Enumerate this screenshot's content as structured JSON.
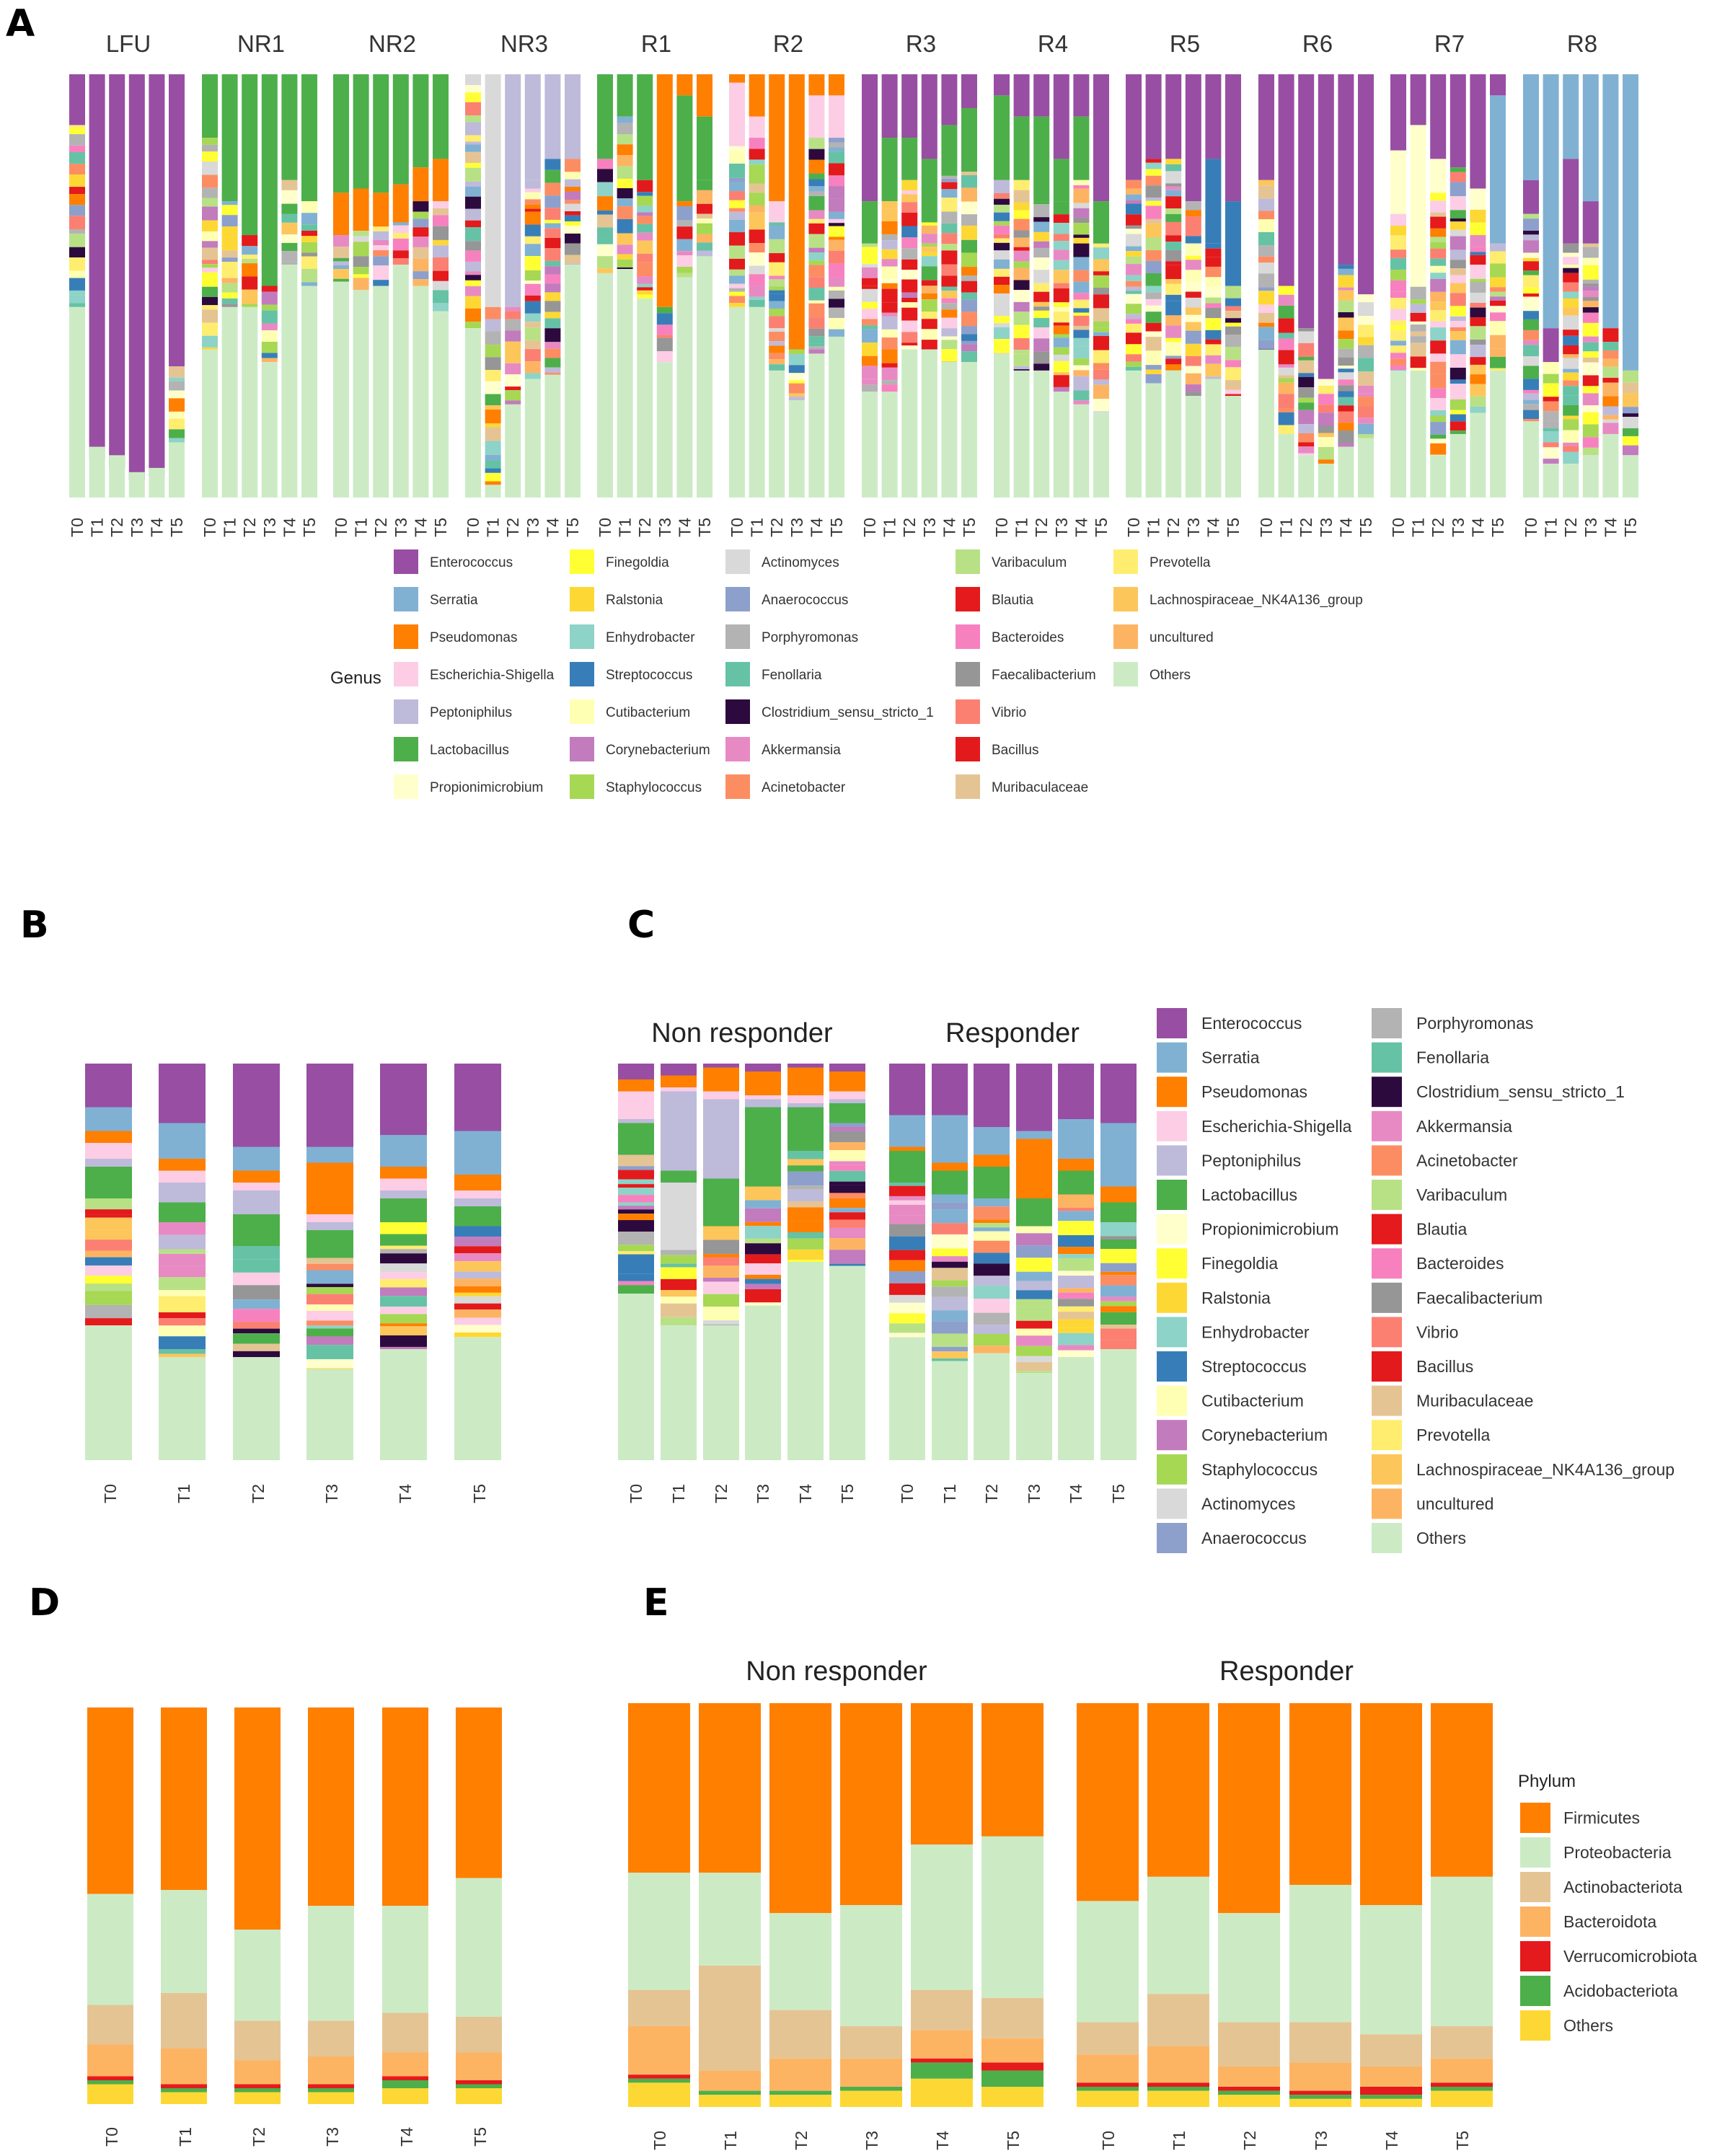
{
  "panels": {
    "a": "A",
    "b": "B",
    "c": "C",
    "d": "D",
    "e": "E"
  },
  "timepoints": [
    "T0",
    "T1",
    "T2",
    "T3",
    "T4",
    "T5"
  ],
  "groups": [
    "LFU",
    "NR1",
    "NR2",
    "NR3",
    "R1",
    "R2",
    "R3",
    "R4",
    "R5",
    "R6",
    "R7",
    "R8"
  ],
  "facets": {
    "non_responder": "Non responder",
    "responder": "Responder"
  },
  "genus_legend": {
    "title": "Genus",
    "items": [
      {
        "name": "Enterococcus",
        "color": "#984ea3"
      },
      {
        "name": "Serratia",
        "color": "#80b1d3"
      },
      {
        "name": "Pseudomonas",
        "color": "#ff7f00"
      },
      {
        "name": "Escherichia-Shigella",
        "color": "#fccde5"
      },
      {
        "name": "Peptoniphilus",
        "color": "#bebada"
      },
      {
        "name": "Lactobacillus",
        "color": "#4daf4a"
      },
      {
        "name": "Propionimicrobium",
        "color": "#ffffcc"
      },
      {
        "name": "Finegoldia",
        "color": "#ffff33"
      },
      {
        "name": "Ralstonia",
        "color": "#fdd835"
      },
      {
        "name": "Enhydrobacter",
        "color": "#8dd3c7"
      },
      {
        "name": "Streptococcus",
        "color": "#377eb8"
      },
      {
        "name": "Cutibacterium",
        "color": "#ffffb3"
      },
      {
        "name": "Corynebacterium",
        "color": "#c27bbd"
      },
      {
        "name": "Staphylococcus",
        "color": "#a6d854"
      },
      {
        "name": "Actinomyces",
        "color": "#d9d9d9"
      },
      {
        "name": "Anaerococcus",
        "color": "#8da0cb"
      },
      {
        "name": "Porphyromonas",
        "color": "#b3b3b3"
      },
      {
        "name": "Fenollaria",
        "color": "#66c2a5"
      },
      {
        "name": "Clostridium_sensu_stricto_1",
        "color": "#2d0a3e"
      },
      {
        "name": "Akkermansia",
        "color": "#e78ac3"
      },
      {
        "name": "Acinetobacter",
        "color": "#fc8d62"
      },
      {
        "name": "Varibaculum",
        "color": "#b8e186"
      },
      {
        "name": "Blautia",
        "color": "#e41a1c"
      },
      {
        "name": "Bacteroides",
        "color": "#f781bf"
      },
      {
        "name": "Faecalibacterium",
        "color": "#969696"
      },
      {
        "name": "Vibrio",
        "color": "#fb8072"
      },
      {
        "name": "Bacillus",
        "color": "#e31a1c"
      },
      {
        "name": "Muribaculaceae",
        "color": "#e5c494"
      },
      {
        "name": "Prevotella",
        "color": "#ffed6f"
      },
      {
        "name": "Lachnospiraceae_NK4A136_group",
        "color": "#fdc65a"
      },
      {
        "name": "uncultured",
        "color": "#fdb462"
      },
      {
        "name": "Others",
        "color": "#ccebc5"
      }
    ]
  },
  "phylum_legend": {
    "title": "Phylum",
    "items": [
      {
        "name": "Firmicutes",
        "color": "#ff7f00"
      },
      {
        "name": "Proteobacteria",
        "color": "#ccebc5"
      },
      {
        "name": "Actinobacteriota",
        "color": "#e5c494"
      },
      {
        "name": "Bacteroidota",
        "color": "#fdb462"
      },
      {
        "name": "Verrucomicrobiota",
        "color": "#e41a1c"
      },
      {
        "name": "Acidobacteriota",
        "color": "#4daf4a"
      },
      {
        "name": "Others",
        "color": "#fdd835"
      }
    ]
  },
  "chart_data": [
    {
      "panel": "A",
      "type": "bar",
      "stacked": true,
      "normalized": true,
      "title": "",
      "xlabel": "",
      "ylabel": "",
      "ylim": [
        0,
        1
      ],
      "note": "Relative abundance per patient group and timepoint (genus level); main segments approximated",
      "bars": [
        {
          "group": "LFU",
          "series": {
            "Enterococcus": [
              0.12,
              0.91,
              0.93,
              0.96,
              0.95,
              0.69
            ],
            "Others": [
              0.45,
              0.12,
              0.1,
              0.06,
              0.07,
              0.13
            ]
          }
        },
        {
          "group": "NR1",
          "series": {
            "Lactobacillus": [
              0.15,
              0.3,
              0.38,
              0.5,
              0.25,
              0.3
            ],
            "Others": [
              0.35,
              0.45,
              0.45,
              0.32,
              0.55,
              0.5
            ]
          }
        },
        {
          "group": "NR2",
          "series": {
            "Lactobacillus": [
              0.28,
              0.27,
              0.28,
              0.26,
              0.22,
              0.2
            ],
            "Pseudomonas": [
              0.1,
              0.1,
              0.08,
              0.09,
              0.08,
              0.1
            ],
            "Others": [
              0.51,
              0.49,
              0.5,
              0.55,
              0.5,
              0.44
            ]
          }
        },
        {
          "group": "NR3",
          "series": {
            "Peptoniphilus": [
              0.0,
              0.0,
              0.55,
              0.25,
              0.2,
              0.2
            ],
            "Actinomyces": [
              0.0,
              0.55,
              0.0,
              0.0,
              0.0,
              0.0
            ],
            "Others": [
              0.4,
              0.03,
              0.22,
              0.28,
              0.29,
              0.55
            ]
          }
        },
        {
          "group": "R1",
          "series": {
            "Pseudomonas": [
              0.0,
              0.0,
              0.0,
              0.55,
              0.05,
              0.1
            ],
            "Lactobacillus": [
              0.2,
              0.1,
              0.25,
              0.0,
              0.25,
              0.15
            ],
            "Others": [
              0.53,
              0.54,
              0.47,
              0.32,
              0.52,
              0.57
            ]
          }
        },
        {
          "group": "R2",
          "series": {
            "Pseudomonas": [
              0.02,
              0.1,
              0.3,
              0.65,
              0.05,
              0.05
            ],
            "Escherichia-Shigella": [
              0.15,
              0.05,
              0.05,
              0.0,
              0.1,
              0.1
            ],
            "Others": [
              0.45,
              0.45,
              0.3,
              0.23,
              0.34,
              0.38
            ]
          }
        },
        {
          "group": "R3",
          "series": {
            "Enterococcus": [
              0.3,
              0.15,
              0.15,
              0.2,
              0.12,
              0.08
            ],
            "Lactobacillus": [
              0.1,
              0.15,
              0.1,
              0.15,
              0.12,
              0.15
            ],
            "Others": [
              0.25,
              0.25,
              0.35,
              0.35,
              0.32,
              0.32
            ]
          }
        },
        {
          "group": "R4",
          "series": {
            "Enterococcus": [
              0.05,
              0.1,
              0.1,
              0.2,
              0.1,
              0.3
            ],
            "Lactobacillus": [
              0.2,
              0.15,
              0.2,
              0.1,
              0.15,
              0.1
            ],
            "Others": [
              0.34,
              0.3,
              0.3,
              0.25,
              0.22,
              0.2
            ]
          }
        },
        {
          "group": "R5",
          "series": {
            "Enterococcus": [
              0.25,
              0.2,
              0.2,
              0.3,
              0.2,
              0.3
            ],
            "Streptococcus": [
              0.0,
              0.0,
              0.0,
              0.0,
              0.2,
              0.2
            ],
            "Others": [
              0.3,
              0.27,
              0.3,
              0.24,
              0.28,
              0.24
            ]
          }
        },
        {
          "group": "R6",
          "series": {
            "Enterococcus": [
              0.25,
              0.5,
              0.6,
              0.72,
              0.45,
              0.52
            ],
            "Others": [
              0.35,
              0.15,
              0.1,
              0.08,
              0.12,
              0.14
            ]
          }
        },
        {
          "group": "R7",
          "series": {
            "Enterococcus": [
              0.18,
              0.12,
              0.2,
              0.22,
              0.27,
              0.05
            ],
            "Propionimicrobium": [
              0.15,
              0.35,
              0.08,
              0.0,
              0.05,
              0.0
            ],
            "Serratia": [
              0.0,
              0.0,
              0.0,
              0.0,
              0.0,
              0.35
            ],
            "Others": [
              0.3,
              0.3,
              0.1,
              0.15,
              0.2,
              0.3
            ]
          }
        },
        {
          "group": "R8",
          "series": {
            "Serratia": [
              0.25,
              0.6,
              0.2,
              0.3,
              0.6,
              0.7
            ],
            "Enterococcus": [
              0.08,
              0.08,
              0.2,
              0.1,
              0.0,
              0.0
            ],
            "Others": [
              0.18,
              0.08,
              0.08,
              0.1,
              0.15,
              0.1
            ]
          }
        }
      ]
    },
    {
      "panel": "B",
      "type": "bar",
      "stacked": true,
      "normalized": true,
      "title": "",
      "xlabel": "",
      "ylabel": "",
      "ylim": [
        0,
        1
      ],
      "categories": [
        "T0",
        "T1",
        "T2",
        "T3",
        "T4",
        "T5"
      ],
      "series": [
        {
          "name": "Enterococcus",
          "values": [
            0.11,
            0.15,
            0.21,
            0.21,
            0.18,
            0.17
          ]
        },
        {
          "name": "Serratia",
          "values": [
            0.06,
            0.09,
            0.06,
            0.04,
            0.08,
            0.11
          ]
        },
        {
          "name": "Pseudomonas",
          "values": [
            0.03,
            0.03,
            0.03,
            0.13,
            0.03,
            0.04
          ]
        },
        {
          "name": "Escherichia-Shigella",
          "values": [
            0.04,
            0.03,
            0.02,
            0.02,
            0.03,
            0.02
          ]
        },
        {
          "name": "Peptoniphilus",
          "values": [
            0.02,
            0.05,
            0.06,
            0.02,
            0.02,
            0.02
          ]
        },
        {
          "name": "Lactobacillus",
          "values": [
            0.08,
            0.05,
            0.08,
            0.07,
            0.06,
            0.05
          ]
        },
        {
          "name": "Others",
          "values": [
            0.34,
            0.26,
            0.26,
            0.23,
            0.28,
            0.31
          ]
        }
      ]
    },
    {
      "panel": "C",
      "type": "bar",
      "stacked": true,
      "normalized": true,
      "title": "",
      "xlabel": "",
      "ylabel": "",
      "ylim": [
        0,
        1
      ],
      "facets": [
        "Non responder",
        "Responder"
      ],
      "categories": [
        "T0",
        "T1",
        "T2",
        "T3",
        "T4",
        "T5"
      ],
      "series_non_responder": [
        {
          "name": "Enterococcus",
          "values": [
            0.04,
            0.03,
            0.01,
            0.02,
            0.01,
            0.02
          ]
        },
        {
          "name": "Pseudomonas",
          "values": [
            0.03,
            0.03,
            0.06,
            0.06,
            0.07,
            0.05
          ]
        },
        {
          "name": "Escherichia-Shigella",
          "values": [
            0.07,
            0.01,
            0.02,
            0.01,
            0.02,
            0.02
          ]
        },
        {
          "name": "Peptoniphilus",
          "values": [
            0.01,
            0.2,
            0.2,
            0.02,
            0.01,
            0.01
          ]
        },
        {
          "name": "Lactobacillus",
          "values": [
            0.08,
            0.03,
            0.12,
            0.2,
            0.11,
            0.05
          ]
        },
        {
          "name": "Actinomyces",
          "values": [
            0.0,
            0.17,
            0.0,
            0.0,
            0.0,
            0.0
          ]
        },
        {
          "name": "Others",
          "values": [
            0.42,
            0.34,
            0.34,
            0.39,
            0.5,
            0.49
          ]
        }
      ],
      "series_responder": [
        {
          "name": "Enterococcus",
          "values": [
            0.13,
            0.13,
            0.16,
            0.17,
            0.14,
            0.15
          ]
        },
        {
          "name": "Serratia",
          "values": [
            0.08,
            0.12,
            0.07,
            0.02,
            0.1,
            0.16
          ]
        },
        {
          "name": "Pseudomonas",
          "values": [
            0.01,
            0.02,
            0.03,
            0.15,
            0.03,
            0.04
          ]
        },
        {
          "name": "Lactobacillus",
          "values": [
            0.08,
            0.06,
            0.08,
            0.07,
            0.06,
            0.05
          ]
        },
        {
          "name": "Others",
          "values": [
            0.31,
            0.25,
            0.27,
            0.22,
            0.26,
            0.28
          ]
        }
      ]
    },
    {
      "panel": "D",
      "type": "bar",
      "stacked": true,
      "normalized": true,
      "title": "",
      "xlabel": "",
      "ylabel": "",
      "ylim": [
        0,
        1
      ],
      "categories": [
        "T0",
        "T1",
        "T2",
        "T3",
        "T4",
        "T5"
      ],
      "series": [
        {
          "name": "Firmicutes",
          "values": [
            0.47,
            0.46,
            0.56,
            0.5,
            0.5,
            0.43
          ]
        },
        {
          "name": "Proteobacteria",
          "values": [
            0.28,
            0.26,
            0.23,
            0.29,
            0.27,
            0.35
          ]
        },
        {
          "name": "Actinobacteriota",
          "values": [
            0.1,
            0.14,
            0.1,
            0.09,
            0.1,
            0.09
          ]
        },
        {
          "name": "Bacteroidota",
          "values": [
            0.08,
            0.09,
            0.06,
            0.07,
            0.06,
            0.07
          ]
        },
        {
          "name": "Verrucomicrobiota",
          "values": [
            0.01,
            0.01,
            0.01,
            0.01,
            0.01,
            0.01
          ]
        },
        {
          "name": "Acidobacteriota",
          "values": [
            0.01,
            0.01,
            0.01,
            0.01,
            0.02,
            0.01
          ]
        },
        {
          "name": "Others",
          "values": [
            0.05,
            0.03,
            0.03,
            0.03,
            0.04,
            0.04
          ]
        }
      ]
    },
    {
      "panel": "E",
      "type": "bar",
      "stacked": true,
      "normalized": true,
      "title": "",
      "xlabel": "",
      "ylabel": "",
      "ylim": [
        0,
        1
      ],
      "facets": [
        "Non responder",
        "Responder"
      ],
      "categories": [
        "T0",
        "T1",
        "T2",
        "T3",
        "T4",
        "T5"
      ],
      "series_non_responder": [
        {
          "name": "Firmicutes",
          "values": [
            0.42,
            0.42,
            0.52,
            0.5,
            0.35,
            0.33
          ]
        },
        {
          "name": "Proteobacteria",
          "values": [
            0.29,
            0.23,
            0.24,
            0.3,
            0.36,
            0.4
          ]
        },
        {
          "name": "Actinobacteriota",
          "values": [
            0.09,
            0.26,
            0.12,
            0.08,
            0.1,
            0.1
          ]
        },
        {
          "name": "Bacteroidota",
          "values": [
            0.12,
            0.05,
            0.08,
            0.07,
            0.07,
            0.06
          ]
        },
        {
          "name": "Verrucomicrobiota",
          "values": [
            0.01,
            0.0,
            0.0,
            0.0,
            0.01,
            0.02
          ]
        },
        {
          "name": "Acidobacteriota",
          "values": [
            0.01,
            0.01,
            0.01,
            0.01,
            0.04,
            0.04
          ]
        },
        {
          "name": "Others",
          "values": [
            0.06,
            0.03,
            0.03,
            0.04,
            0.07,
            0.05
          ]
        }
      ],
      "series_responder": [
        {
          "name": "Firmicutes",
          "values": [
            0.49,
            0.43,
            0.52,
            0.45,
            0.5,
            0.43
          ]
        },
        {
          "name": "Proteobacteria",
          "values": [
            0.3,
            0.29,
            0.27,
            0.34,
            0.32,
            0.37
          ]
        },
        {
          "name": "Actinobacteriota",
          "values": [
            0.08,
            0.13,
            0.11,
            0.1,
            0.08,
            0.08
          ]
        },
        {
          "name": "Bacteroidota",
          "values": [
            0.07,
            0.09,
            0.05,
            0.07,
            0.05,
            0.06
          ]
        },
        {
          "name": "Verrucomicrobiota",
          "values": [
            0.01,
            0.01,
            0.01,
            0.01,
            0.02,
            0.01
          ]
        },
        {
          "name": "Acidobacteriota",
          "values": [
            0.01,
            0.01,
            0.01,
            0.01,
            0.01,
            0.01
          ]
        },
        {
          "name": "Others",
          "values": [
            0.04,
            0.04,
            0.03,
            0.02,
            0.02,
            0.04
          ]
        }
      ]
    }
  ]
}
